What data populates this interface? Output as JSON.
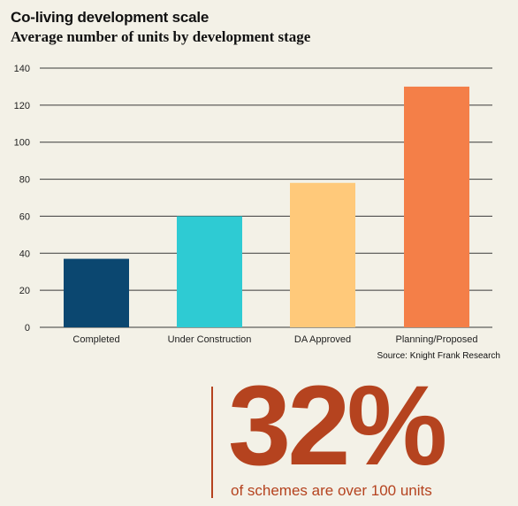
{
  "chart_data": {
    "type": "bar",
    "title": "Co-living development scale",
    "subtitle": "Average number of units by development stage",
    "categories": [
      "Completed",
      "Under Construction",
      "DA Approved",
      "Planning/Proposed"
    ],
    "values": [
      37,
      60,
      78,
      130
    ],
    "colors": [
      "#0b4770",
      "#2ecbd3",
      "#ffc97a",
      "#f47f48"
    ],
    "ylim": [
      0,
      140
    ],
    "yticks": [
      0,
      20,
      40,
      60,
      80,
      100,
      120,
      140
    ],
    "grid": true,
    "source": "Source: Knight Frank Research"
  },
  "callout": {
    "stat": "32%",
    "caption": "of schemes are over 100 units",
    "color": "#b5431f"
  }
}
